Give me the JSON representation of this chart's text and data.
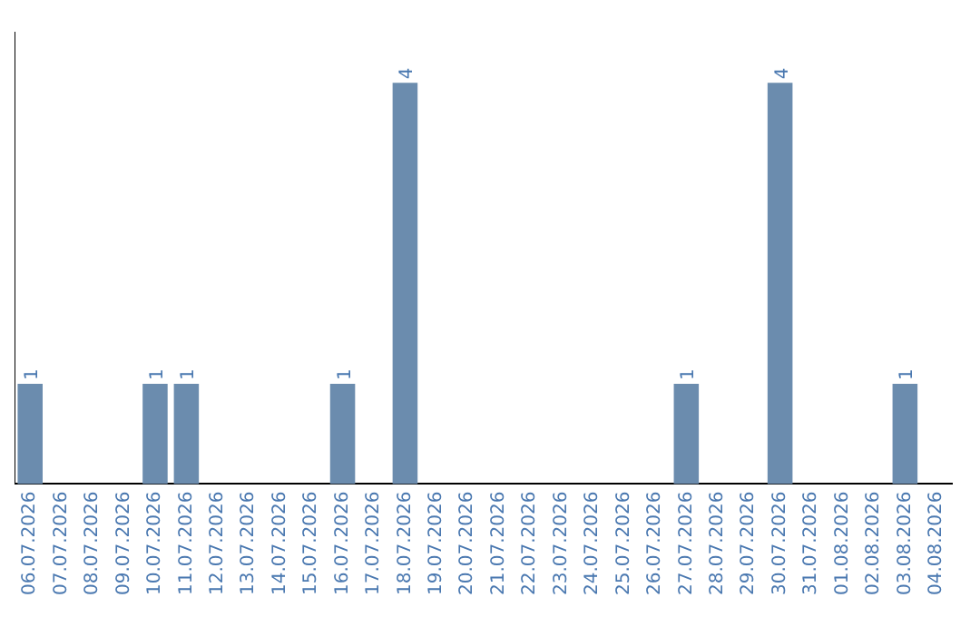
{
  "chart_data": {
    "type": "bar",
    "categories": [
      "06.07.2026",
      "07.07.2026",
      "08.07.2026",
      "09.07.2026",
      "10.07.2026",
      "11.07.2026",
      "12.07.2026",
      "13.07.2026",
      "14.07.2026",
      "15.07.2026",
      "16.07.2026",
      "17.07.2026",
      "18.07.2026",
      "19.07.2026",
      "20.07.2026",
      "21.07.2026",
      "22.07.2026",
      "23.07.2026",
      "24.07.2026",
      "25.07.2026",
      "26.07.2026",
      "27.07.2026",
      "28.07.2026",
      "29.07.2026",
      "30.07.2026",
      "31.07.2026",
      "01.08.2026",
      "02.08.2026",
      "03.08.2026",
      "04.08.2026"
    ],
    "values": [
      1,
      0,
      0,
      0,
      1,
      1,
      0,
      0,
      0,
      0,
      1,
      0,
      4,
      0,
      0,
      0,
      0,
      0,
      0,
      0,
      0,
      1,
      0,
      0,
      4,
      0,
      0,
      0,
      1,
      0
    ],
    "value_labels": [
      "1",
      null,
      null,
      null,
      "1",
      "1",
      null,
      null,
      null,
      null,
      "1",
      null,
      "4",
      null,
      null,
      null,
      null,
      null,
      null,
      null,
      null,
      "1",
      null,
      null,
      "4",
      null,
      null,
      null,
      "1",
      null
    ],
    "color": "#6b8cae",
    "tick_labels": "x",
    "grid": false,
    "legend": false
  }
}
